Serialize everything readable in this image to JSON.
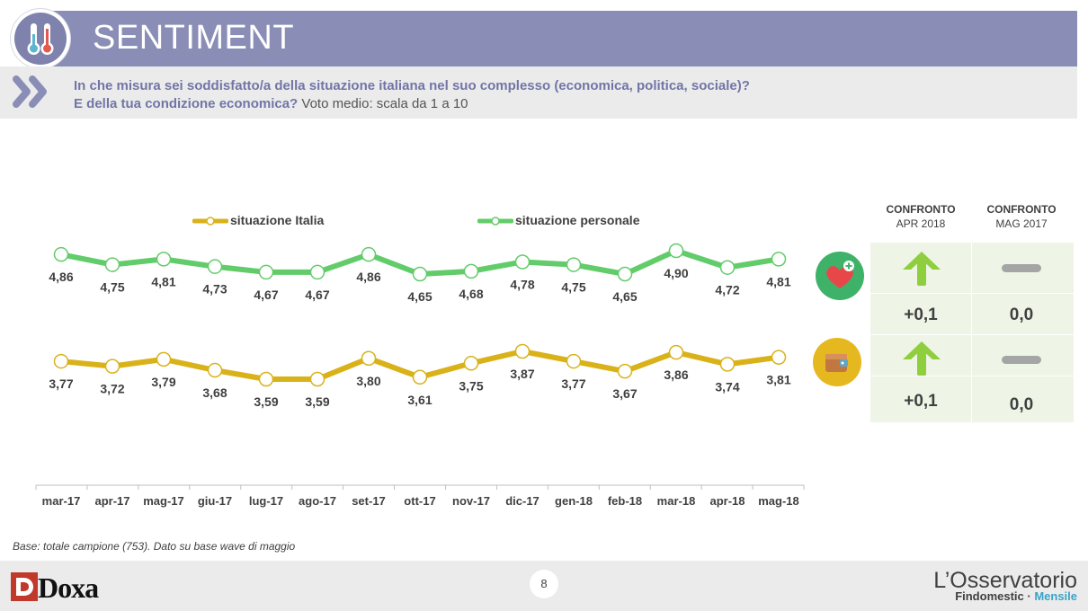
{
  "header": {
    "title": "SENTIMENT"
  },
  "question": {
    "line1": "In che misura sei soddisfatto/a della situazione italiana nel suo complesso (economica, politica, sociale)?",
    "line2_bold": "E della tua condizione economica?",
    "line2_rest": " Voto medio: scala da 1 a 10"
  },
  "colors": {
    "italia": "#d9b21a",
    "personale": "#62cc6a",
    "header": "#8a8db5",
    "arrow": "#8fcf3f"
  },
  "chart_data": {
    "type": "line",
    "categories": [
      "mar-17",
      "apr-17",
      "mag-17",
      "giu-17",
      "lug-17",
      "ago-17",
      "set-17",
      "ott-17",
      "nov-17",
      "dic-17",
      "gen-18",
      "feb-18",
      "mar-18",
      "apr-18",
      "mag-18"
    ],
    "series": [
      {
        "name": "situazione Italia",
        "labels": [
          "3,77",
          "3,72",
          "3,79",
          "3,68",
          "3,59",
          "3,59",
          "3,80",
          "3,61",
          "3,75",
          "3,87",
          "3,77",
          "3,67",
          "3,86",
          "3,74",
          "3,81"
        ],
        "values": [
          3.77,
          3.72,
          3.79,
          3.68,
          3.59,
          3.59,
          3.8,
          3.61,
          3.75,
          3.87,
          3.77,
          3.67,
          3.86,
          3.74,
          3.81
        ]
      },
      {
        "name": "situazione personale",
        "labels": [
          "4,86",
          "4,75",
          "4,81",
          "4,73",
          "4,67",
          "4,67",
          "4,86",
          "4,65",
          "4,68",
          "4,78",
          "4,75",
          "4,65",
          "4,90",
          "4,72",
          "4,81"
        ],
        "values": [
          4.86,
          4.75,
          4.81,
          4.73,
          4.67,
          4.67,
          4.86,
          4.65,
          4.68,
          4.78,
          4.75,
          4.65,
          4.9,
          4.72,
          4.81
        ]
      }
    ],
    "legend": [
      "situazione Italia",
      "situazione personale"
    ],
    "legend_position": "top"
  },
  "comparison": {
    "col1_title": "CONFRONTO",
    "col1_sub": "APR 2018",
    "col2_title": "CONFRONTO",
    "col2_sub": "MAG 2017",
    "rows": [
      {
        "icon": "heart-icon",
        "arrow": "up-arrow-icon",
        "delta_apr": "+0,1",
        "delta_mag": "0,0"
      },
      {
        "icon": "wallet-icon",
        "arrow": "up-arrow-icon",
        "delta_apr": "+0,1",
        "delta_mag": "0,0"
      }
    ]
  },
  "footer": {
    "base_note": "Base: totale campione (753). Dato su base wave di maggio",
    "page_number": "8",
    "brand_left_a": "D",
    "brand_left_b": "oxa",
    "brand_right_1": "L’Osservatorio",
    "brand_right_2a": "Findomestic · ",
    "brand_right_2b": "Mensile"
  }
}
